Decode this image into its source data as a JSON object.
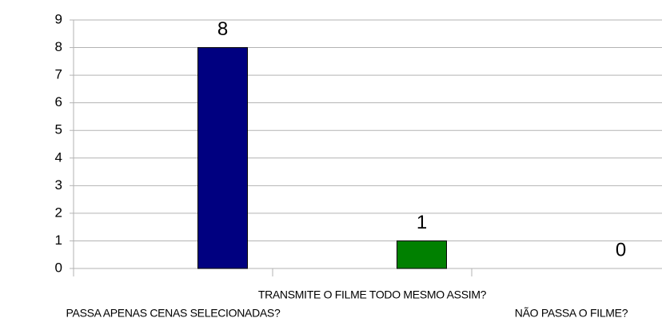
{
  "chart_data": {
    "type": "bar",
    "categories": [
      "PASSA APENAS CENAS SELECIONADAS?",
      "TRANSMITE O FILME TODO MESMO ASSIM?",
      "NÃO PASSA O FILME?"
    ],
    "values": [
      8,
      1,
      0
    ],
    "colors": [
      "#000080",
      "#008000",
      "#ffd320"
    ],
    "ylim": [
      0,
      9
    ],
    "yticks": [
      0,
      1,
      2,
      3,
      4,
      5,
      6,
      7,
      8,
      9
    ],
    "grid": true
  }
}
